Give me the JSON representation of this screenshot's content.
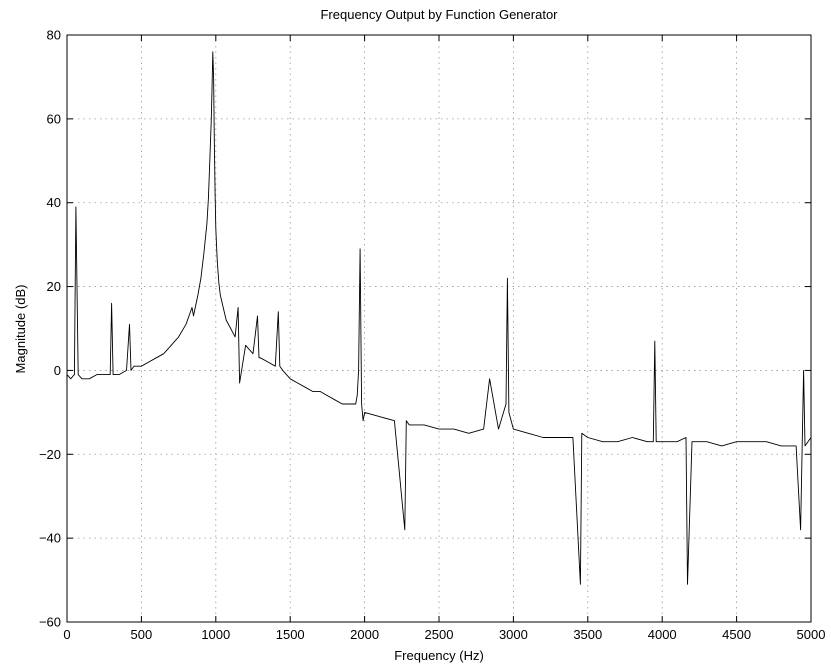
{
  "chart_data": {
    "type": "line",
    "title": "Frequency Output by Function Generator",
    "xlabel": "Frequency (Hz)",
    "ylabel": "Magnitude (dB)",
    "xlim": [
      0,
      5000
    ],
    "ylim": [
      -60,
      80
    ],
    "grid": true,
    "xticks": [
      0,
      500,
      1000,
      1500,
      2000,
      2500,
      3000,
      3500,
      4000,
      4500,
      5000
    ],
    "yticks": [
      -60,
      -40,
      -20,
      0,
      20,
      40,
      60,
      80
    ],
    "xtick_labels": [
      "0",
      "500",
      "1000",
      "1500",
      "2000",
      "2500",
      "3000",
      "3500",
      "4000",
      "4500",
      "5000"
    ],
    "ytick_labels": [
      "−60",
      "−40",
      "−20",
      "0",
      "20",
      "40",
      "60",
      "80"
    ],
    "series": [
      {
        "line_color": "#000000",
        "x": [
          0,
          25,
          50,
          60,
          75,
          100,
          150,
          200,
          250,
          290,
          300,
          310,
          350,
          400,
          420,
          430,
          450,
          500,
          550,
          600,
          650,
          700,
          750,
          800,
          840,
          850,
          880,
          900,
          920,
          940,
          950,
          960,
          970,
          975,
          980,
          985,
          990,
          995,
          1000,
          1005,
          1010,
          1020,
          1030,
          1050,
          1070,
          1100,
          1130,
          1150,
          1160,
          1200,
          1250,
          1280,
          1290,
          1300,
          1350,
          1400,
          1420,
          1430,
          1450,
          1500,
          1550,
          1600,
          1650,
          1700,
          1750,
          1800,
          1850,
          1900,
          1940,
          1950,
          1960,
          1970,
          1980,
          1990,
          2000,
          2100,
          2200,
          2270,
          2280,
          2300,
          2400,
          2500,
          2600,
          2700,
          2800,
          2840,
          2900,
          2950,
          2960,
          2970,
          3000,
          3100,
          3200,
          3300,
          3400,
          3450,
          3460,
          3500,
          3600,
          3700,
          3800,
          3900,
          3940,
          3950,
          3960,
          4000,
          4100,
          4160,
          4170,
          4200,
          4300,
          4400,
          4500,
          4600,
          4700,
          4800,
          4900,
          4930,
          4950,
          4960,
          5000
        ],
        "y": [
          -1,
          -2,
          -1,
          39,
          -1,
          -2,
          -2,
          -1,
          -1,
          -1,
          16,
          -1,
          -1,
          0,
          11,
          0,
          1,
          1,
          2,
          3,
          4,
          6,
          8,
          11,
          15,
          13,
          18,
          22,
          28,
          35,
          41,
          50,
          60,
          68,
          76,
          70,
          55,
          42,
          34,
          30,
          26,
          21,
          18,
          15,
          12,
          10,
          8,
          15,
          -3,
          6,
          4,
          13,
          3,
          3,
          2,
          1,
          14,
          1,
          0,
          -2,
          -3,
          -4,
          -5,
          -5,
          -6,
          -7,
          -8,
          -8,
          -8,
          -6,
          0,
          29,
          -8,
          -12,
          -10,
          -11,
          -12,
          -38,
          -12,
          -13,
          -13,
          -14,
          -14,
          -15,
          -14,
          -2,
          -14,
          -8,
          22,
          -10,
          -14,
          -15,
          -16,
          -16,
          -16,
          -51,
          -15,
          -16,
          -17,
          -17,
          -16,
          -17,
          -17,
          7,
          -17,
          -17,
          -17,
          -16,
          -51,
          -17,
          -17,
          -18,
          -17,
          -17,
          -17,
          -18,
          -18,
          -38,
          0,
          -18,
          -16
        ]
      }
    ]
  }
}
